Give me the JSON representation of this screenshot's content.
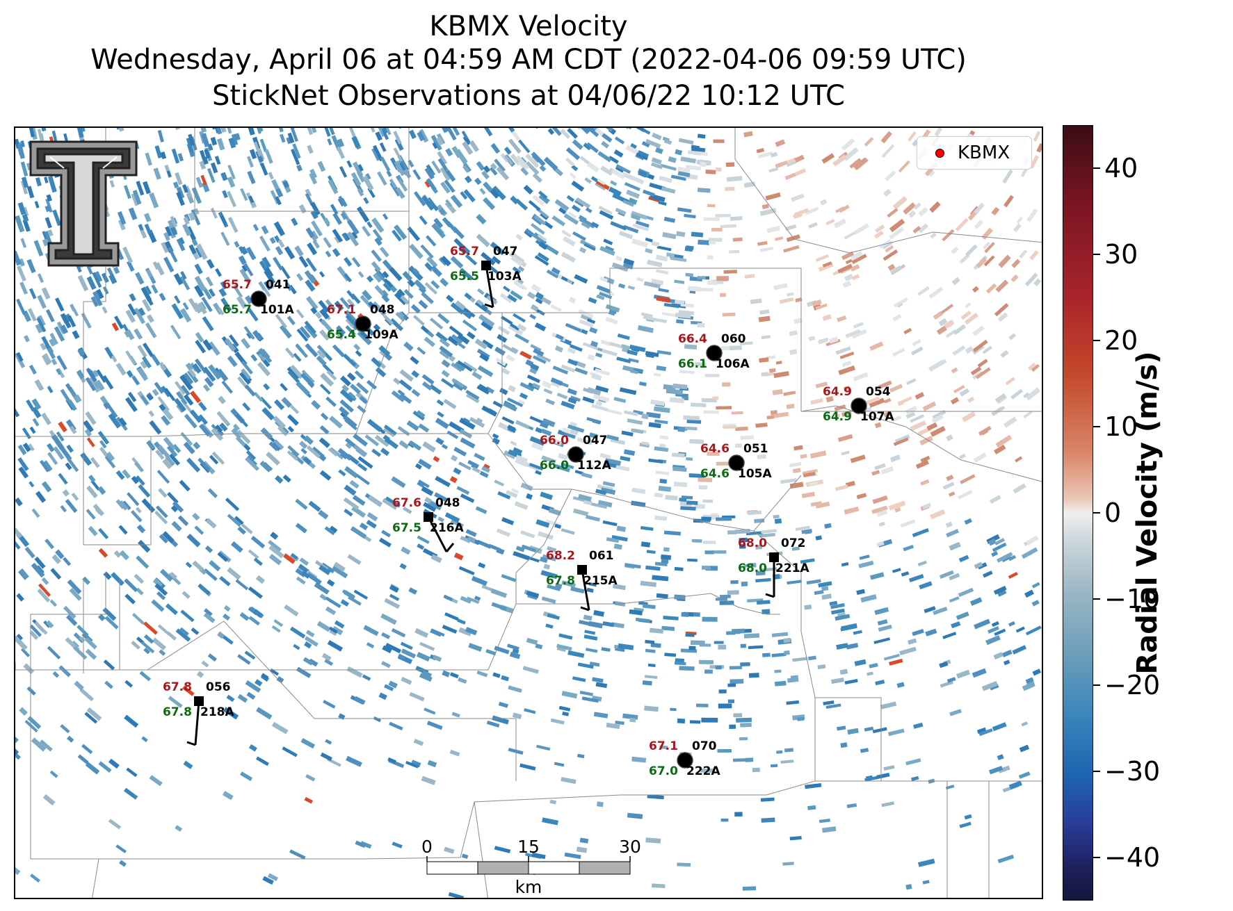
{
  "title": {
    "line1": "KBMX Velocity",
    "line2": "Wednesday, April 06 at 04:59 AM CDT (2022-04-06 09:59 UTC)",
    "line3": "StickNet Observations at 04/06/22 10:12 UTC"
  },
  "legend": {
    "label": "KBMX",
    "marker_color": "#ff0000"
  },
  "colorbar": {
    "title": "Radial Velocity (m/s)",
    "ticks": [
      40,
      30,
      20,
      10,
      0,
      -10,
      -20,
      -30,
      -40
    ],
    "tick_labels": [
      "40",
      "30",
      "20",
      "10",
      "0",
      "−10",
      "−20",
      "−30",
      "−40"
    ],
    "range": [
      -45,
      45
    ]
  },
  "scale_bar": {
    "ticks": [
      "0",
      "15",
      "30"
    ],
    "unit": "km"
  },
  "stations": [
    {
      "id": "101A",
      "temp": "65.7",
      "dew": "65.7",
      "dir": "041",
      "probe": "circle"
    },
    {
      "id": "109A",
      "temp": "67.1",
      "dew": "65.4",
      "dir": "048",
      "probe": "circle"
    },
    {
      "id": "103A",
      "temp": "65.7",
      "dew": "65.5",
      "dir": "047",
      "probe": "square"
    },
    {
      "id": "106A",
      "temp": "66.4",
      "dew": "66.1",
      "dir": "060",
      "probe": "circle"
    },
    {
      "id": "107A",
      "temp": "64.9",
      "dew": "64.9",
      "dir": "054",
      "probe": "circle"
    },
    {
      "id": "112A",
      "temp": "66.0",
      "dew": "66.0",
      "dir": "047",
      "probe": "circle"
    },
    {
      "id": "105A",
      "temp": "64.6",
      "dew": "64.6",
      "dir": "051",
      "probe": "circle"
    },
    {
      "id": "216A",
      "temp": "67.6",
      "dew": "67.5",
      "dir": "048",
      "probe": "square"
    },
    {
      "id": "215A",
      "temp": "68.2",
      "dew": "67.8",
      "dir": "061",
      "probe": "square"
    },
    {
      "id": "221A",
      "temp": "68.0",
      "dew": "68.0",
      "dir": "072",
      "probe": "square"
    },
    {
      "id": "218A",
      "temp": "67.8",
      "dew": "67.8",
      "dir": "056",
      "probe": "square"
    },
    {
      "id": "222A",
      "temp": "67.1",
      "dew": "67.0",
      "dir": "070",
      "probe": "circle"
    }
  ],
  "colors": {
    "temp": "#a8171c",
    "dew": "#0d6a12",
    "text": "#000000"
  }
}
